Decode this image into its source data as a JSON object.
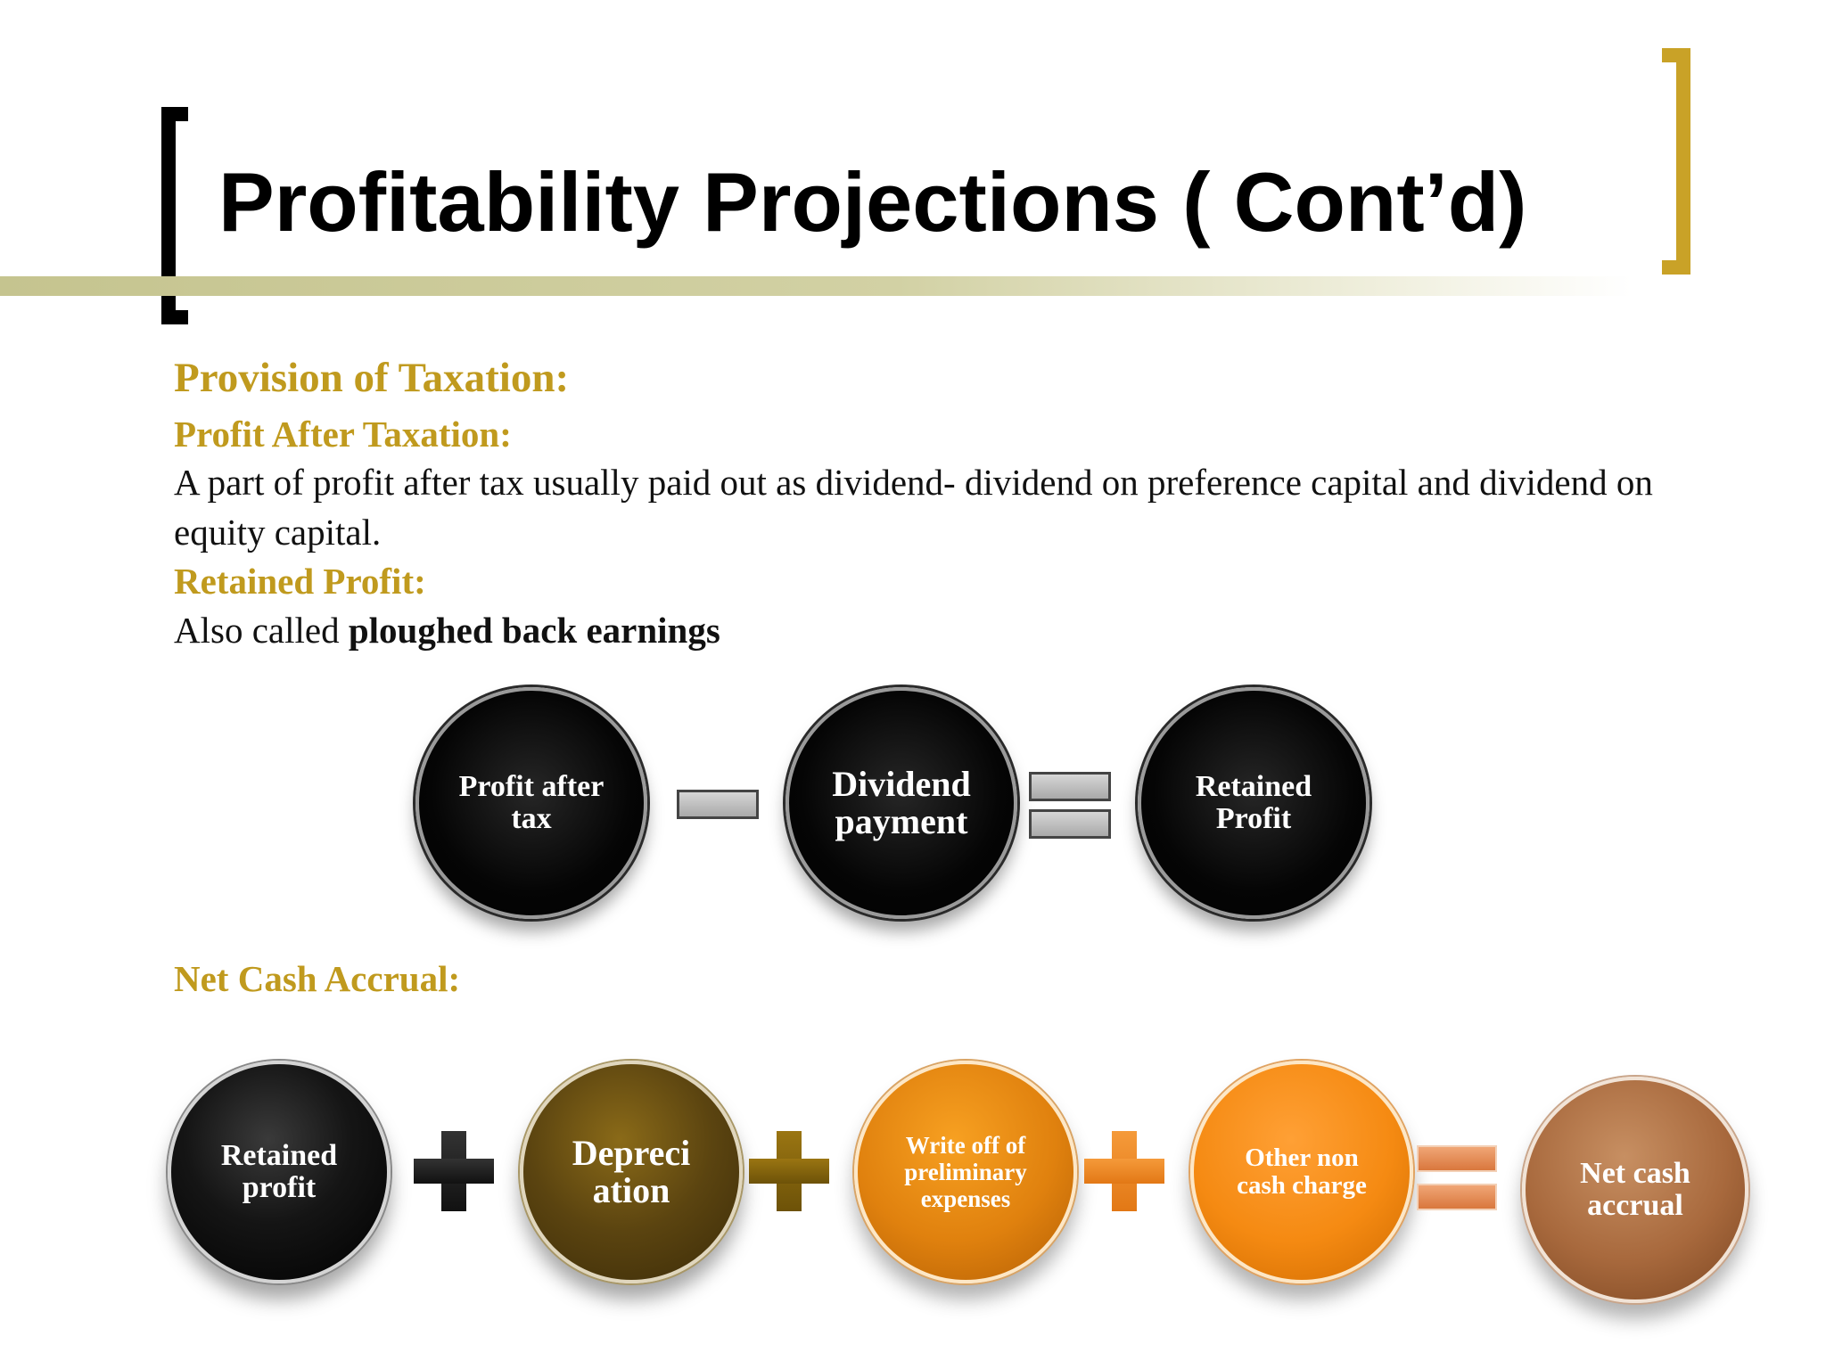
{
  "slide": {
    "title": "Profitability Projections ( Cont’d)",
    "colors": {
      "accent_gold": "#c09a1e",
      "bracket_gold": "#c9a227"
    }
  },
  "content": {
    "heading_provision": "Provision of Taxation:",
    "heading_pat": "Profit After Taxation:",
    "pat_text": "A part of profit after tax usually paid out as dividend- dividend on preference capital and dividend on equity capital.",
    "heading_retained": "Retained Profit:",
    "retained_prefix": "Also called ",
    "retained_bold": "ploughed back earnings",
    "heading_nca": "Net Cash Accrual:"
  },
  "equation1": {
    "terms": [
      "Profit after tax",
      "Dividend payment",
      "Retained Profit"
    ],
    "operators": [
      "minus",
      "equals"
    ]
  },
  "equation2": {
    "terms": [
      "Retained profit",
      "Depreci ation",
      "Write off of preliminary expenses",
      "Other non cash charge",
      "Net cash accrual"
    ],
    "operators": [
      "plus",
      "plus",
      "plus",
      "equals"
    ]
  }
}
